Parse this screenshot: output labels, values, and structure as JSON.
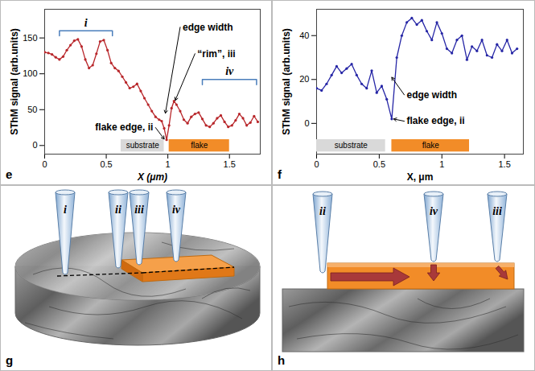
{
  "chart_data": [
    {
      "panel": "e",
      "type": "line",
      "color": "#b8262a",
      "marker": "circle",
      "grid": false,
      "x_label": "X (μm)",
      "y_label": "SThM signal (arb.units)",
      "xlim": [
        0,
        1.75
      ],
      "xticks": [
        0,
        0.5,
        1,
        1.5
      ],
      "ylim": [
        -12,
        190
      ],
      "yticks": [
        0,
        50,
        100,
        150
      ],
      "x": [
        0,
        0.03,
        0.06,
        0.09,
        0.12,
        0.15,
        0.18,
        0.21,
        0.24,
        0.27,
        0.3,
        0.33,
        0.36,
        0.39,
        0.42,
        0.45,
        0.48,
        0.51,
        0.54,
        0.57,
        0.6,
        0.63,
        0.66,
        0.69,
        0.72,
        0.75,
        0.78,
        0.81,
        0.84,
        0.87,
        0.9,
        0.93,
        0.95,
        0.97,
        0.99,
        1.01,
        1.03,
        1.05,
        1.07,
        1.1,
        1.13,
        1.16,
        1.19,
        1.22,
        1.25,
        1.28,
        1.31,
        1.34,
        1.37,
        1.4,
        1.43,
        1.46,
        1.49,
        1.52,
        1.55,
        1.58,
        1.61,
        1.64,
        1.67,
        1.7,
        1.73
      ],
      "values": [
        130,
        129,
        127,
        123,
        120,
        124,
        133,
        140,
        146,
        148,
        138,
        120,
        108,
        112,
        128,
        145,
        147,
        133,
        115,
        108,
        104,
        96,
        88,
        80,
        82,
        86,
        76,
        66,
        57,
        48,
        40,
        36,
        34,
        24,
        8,
        28,
        52,
        62,
        57,
        48,
        36,
        31,
        40,
        44,
        46,
        37,
        28,
        26,
        31,
        38,
        42,
        33,
        26,
        28,
        35,
        44,
        38,
        28,
        32,
        41,
        33
      ],
      "annotations": [
        {
          "text": "i",
          "x": [
            0.12,
            0.55
          ],
          "y": 160
        },
        {
          "text": "edge width",
          "x": 1.1,
          "y": 165,
          "arrow_to": [
            0.98,
            45
          ]
        },
        {
          "text": "“rim”, iii",
          "x": 1.22,
          "y": 128,
          "arrow_to": [
            1.06,
            63
          ]
        },
        {
          "text": "flake edge, ii",
          "x": 0.9,
          "y": 25,
          "arrow_to": [
            0.97,
            9
          ]
        },
        {
          "text": "iv",
          "x": [
            1.28,
            1.72
          ],
          "y": 92
        }
      ],
      "regions": [
        {
          "label": "substrate",
          "x": [
            0.62,
            0.97
          ],
          "color": "#d9d9d9"
        },
        {
          "label": "flake",
          "x": [
            1.01,
            1.5
          ],
          "color": "#f28c28"
        }
      ]
    },
    {
      "panel": "f",
      "type": "line",
      "color": "#2626a6",
      "marker": "circle",
      "grid": false,
      "x_label": "X, μm",
      "y_label": "SThM signal (arb.units)",
      "xlim": [
        0,
        1.65
      ],
      "xticks": [
        0,
        0.5,
        1,
        1.5
      ],
      "ylim": [
        -14,
        52
      ],
      "yticks": [
        0,
        20,
        40
      ],
      "x": [
        0,
        0.04,
        0.08,
        0.12,
        0.16,
        0.2,
        0.24,
        0.28,
        0.32,
        0.36,
        0.4,
        0.44,
        0.48,
        0.52,
        0.56,
        0.6,
        0.64,
        0.68,
        0.72,
        0.76,
        0.8,
        0.84,
        0.88,
        0.92,
        0.96,
        1,
        1.04,
        1.08,
        1.12,
        1.16,
        1.2,
        1.24,
        1.28,
        1.32,
        1.36,
        1.4,
        1.44,
        1.48,
        1.52,
        1.56,
        1.6
      ],
      "values": [
        16,
        15,
        18,
        22,
        26,
        23,
        25,
        27,
        22,
        18,
        16,
        24,
        14,
        17,
        11,
        2,
        30,
        40,
        46,
        48,
        45,
        47,
        42,
        38,
        46,
        41,
        34,
        32,
        38,
        40,
        29,
        35,
        33,
        38,
        31,
        30,
        36,
        33,
        38,
        32,
        34
      ],
      "annotations": [
        {
          "text": "edge width",
          "x": 0.7,
          "y": 13,
          "arrow_to": [
            0.6,
            21
          ]
        },
        {
          "text": "flake edge, ii",
          "x": 0.7,
          "y": 1,
          "arrow_to": [
            0.615,
            2
          ]
        }
      ],
      "regions": [
        {
          "label": "substrate",
          "x": [
            0,
            0.55
          ],
          "color": "#d9d9d9"
        },
        {
          "label": "flake",
          "x": [
            0.6,
            1.22
          ],
          "color": "#f28c28"
        }
      ]
    }
  ],
  "diagrams": [
    {
      "panel": "g",
      "probe_labels": [
        "i",
        "ii",
        "iii",
        "iv"
      ]
    },
    {
      "panel": "h",
      "probe_labels": [
        "ii",
        "iv",
        "iii"
      ]
    }
  ]
}
